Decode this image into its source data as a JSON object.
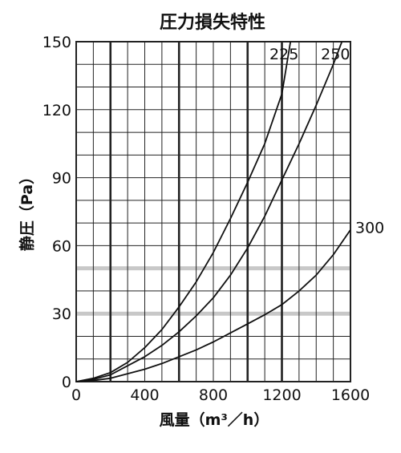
{
  "chart_data": {
    "type": "line",
    "title": "圧力損失特性",
    "xlabel": "風量（m³／h）",
    "ylabel": "静圧（Pa）",
    "xlim": [
      0,
      1600
    ],
    "ylim": [
      0,
      150
    ],
    "x_ticks": [
      0,
      400,
      800,
      1200,
      1600
    ],
    "y_ticks": [
      0,
      30,
      60,
      90,
      120,
      150
    ],
    "x_tick_labels": [
      "0",
      "400",
      "800",
      "1200",
      "1600"
    ],
    "y_tick_labels": [
      "0",
      "30",
      "60",
      "90",
      "120",
      "150"
    ],
    "x_grid_minor_step": 100,
    "y_grid_minor_step": 10,
    "x_grid_bold": [
      200,
      600,
      1000,
      1200
    ],
    "y_grid_highlight": [
      30,
      50
    ],
    "grid": true,
    "series": [
      {
        "name": "225",
        "x": [
          0,
          100,
          200,
          300,
          400,
          500,
          600,
          700,
          800,
          900,
          1000,
          1100,
          1200,
          1250
        ],
        "y": [
          0,
          1.5,
          4,
          8.5,
          15,
          23,
          33,
          44,
          57,
          72,
          88,
          105,
          127,
          150
        ]
      },
      {
        "name": "250",
        "x": [
          0,
          100,
          200,
          300,
          400,
          500,
          600,
          700,
          800,
          900,
          1000,
          1100,
          1200,
          1300,
          1400,
          1500,
          1550
        ],
        "y": [
          0,
          1,
          3,
          7,
          11,
          16,
          22,
          29,
          37,
          47,
          59,
          73,
          89,
          105,
          122,
          140,
          150
        ]
      },
      {
        "name": "300",
        "x": [
          0,
          100,
          200,
          300,
          400,
          500,
          600,
          700,
          800,
          900,
          1000,
          1100,
          1200,
          1300,
          1400,
          1500,
          1600
        ],
        "y": [
          0,
          0.5,
          1.5,
          3.5,
          5.5,
          8,
          11,
          14,
          17.5,
          21.5,
          25.5,
          29.5,
          34,
          40,
          47,
          56,
          67
        ]
      }
    ],
    "series_label_positions": [
      "top",
      "top",
      "right"
    ],
    "colors": {
      "line": "#111111",
      "grid": "#222222",
      "highlight": "#c8c8c8"
    }
  }
}
